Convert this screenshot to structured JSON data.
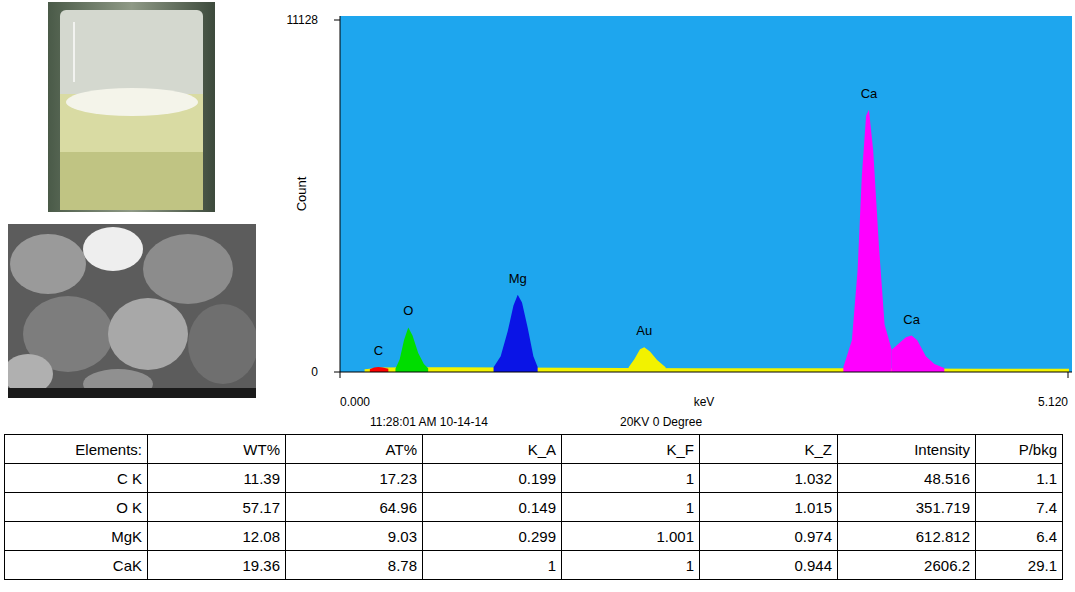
{
  "chart_data": {
    "type": "area",
    "x_label": "keV",
    "y_label": "Count",
    "xlim": [
      0,
      5.12
    ],
    "xticks": [
      {
        "value": 0,
        "label": "0.000"
      },
      {
        "value": 5.12,
        "label": "5.120"
      }
    ],
    "ylim": [
      0,
      11128
    ],
    "yticks": [
      0,
      11128
    ],
    "grid": false,
    "annotations": [
      "11:28:01 AM 10-14-14",
      "20KV 0 Degree"
    ],
    "series": [
      {
        "color": "#f2f200",
        "x": [
          0.18,
          0.3,
          0.5,
          0.8,
          1.2,
          1.6,
          2.0,
          2.5,
          3.0,
          3.5,
          4.0,
          4.5,
          5.12
        ],
        "values": [
          60,
          110,
          120,
          115,
          110,
          100,
          95,
          90,
          85,
          85,
          80,
          75,
          70
        ]
      },
      {
        "name": "C",
        "color": "#ff0000",
        "x": [
          0.21,
          0.24,
          0.27,
          0.3,
          0.34
        ],
        "values": [
          90,
          140,
          160,
          140,
          100
        ]
      },
      {
        "name": "O",
        "color": "#00dd00",
        "x": [
          0.39,
          0.42,
          0.45,
          0.48,
          0.51,
          0.55,
          0.59,
          0.62
        ],
        "values": [
          100,
          400,
          1000,
          1410,
          1150,
          600,
          250,
          120
        ]
      },
      {
        "name": "Mg",
        "color": "#0a14e6",
        "x": [
          1.08,
          1.13,
          1.18,
          1.22,
          1.25,
          1.28,
          1.32,
          1.36,
          1.39
        ],
        "values": [
          150,
          500,
          1300,
          2100,
          2440,
          2200,
          1400,
          500,
          160
        ]
      },
      {
        "name": "Au",
        "color": "#f2f200",
        "x": [
          2.03,
          2.07,
          2.11,
          2.14,
          2.18,
          2.23,
          2.29
        ],
        "values": [
          150,
          400,
          720,
          780,
          650,
          380,
          150
        ]
      },
      {
        "name": "Ca",
        "color": "#ff00ff",
        "x": [
          3.54,
          3.6,
          3.64,
          3.67,
          3.7,
          3.72,
          3.75,
          3.79,
          3.83,
          3.88
        ],
        "values": [
          150,
          1000,
          3200,
          6200,
          8100,
          8290,
          7000,
          4000,
          1500,
          700
        ]
      },
      {
        "name": "Ca",
        "color": "#ff00ff",
        "x": [
          3.88,
          3.93,
          3.98,
          4.02,
          4.06,
          4.12,
          4.18,
          4.25
        ],
        "values": [
          700,
          900,
          1100,
          1150,
          1000,
          500,
          250,
          130
        ]
      }
    ]
  },
  "table": {
    "header": [
      "Elements:",
      "WT%",
      "AT%",
      "K_A",
      "K_F",
      "K_Z",
      "Intensity",
      "P/bkg"
    ],
    "rows": [
      [
        "C K",
        11.39,
        17.23,
        0.199,
        1,
        1.032,
        48.516,
        1.1
      ],
      [
        "O K",
        57.17,
        64.96,
        0.149,
        1,
        1.015,
        351.719,
        7.4
      ],
      [
        "MgK",
        12.08,
        9.03,
        0.299,
        1.001,
        0.974,
        612.812,
        6.4
      ],
      [
        "CaK",
        19.36,
        8.78,
        1,
        1,
        0.944,
        2606.2,
        29.1
      ]
    ]
  }
}
